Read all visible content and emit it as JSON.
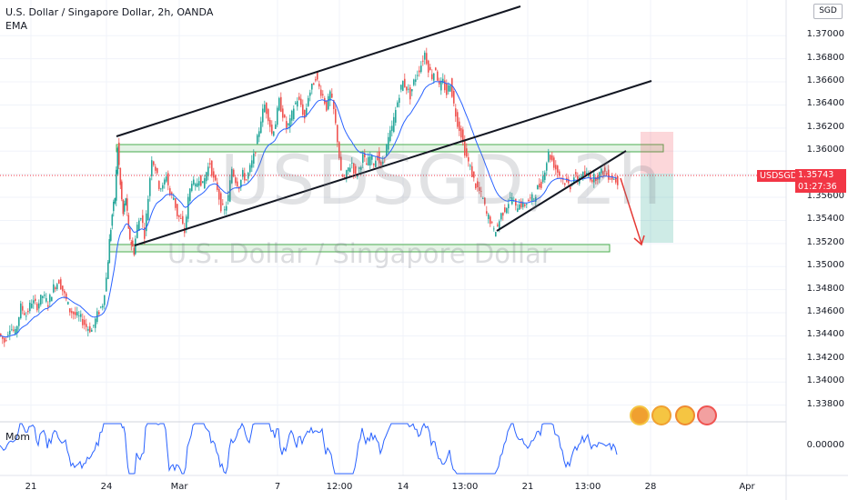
{
  "header": {
    "title": "U.S. Dollar / Singapore Dollar, 2h, OANDA",
    "indicator": "EMA"
  },
  "currency_button": "SGD",
  "watermark": {
    "symbol": "USDSGD, 2h",
    "description": "U.S. Dollar / Singapore Dollar"
  },
  "current_price": {
    "symbol": "USDSGD",
    "price": "1.35743",
    "countdown": "01:27:36"
  },
  "momentum_label": "Mom",
  "momentum_value": "0.00000",
  "colors": {
    "up": "#26a69a",
    "down": "#ef5350",
    "ema": "#2962ff",
    "zone": "#4caf50",
    "badge": "#f23645",
    "target": "#e53935"
  },
  "chart_data": {
    "type": "candlestick",
    "price_axis_ticks": [
      "1.37000",
      "1.36800",
      "1.36600",
      "1.36400",
      "1.36200",
      "1.36000",
      "1.35800",
      "1.35600",
      "1.35400",
      "1.35200",
      "1.35000",
      "1.34800",
      "1.34600",
      "1.34400",
      "1.34200",
      "1.34000",
      "1.33800"
    ],
    "time_axis_ticks": [
      "21",
      "24",
      "Mar",
      "7",
      "12:00",
      "14",
      "13:00",
      "21",
      "13:00",
      "28",
      "Apr"
    ],
    "ylim": [
      1.3375,
      1.3712
    ],
    "series": [
      {
        "name": "USDSGD",
        "path_points": [
          [
            0,
            1.3442
          ],
          [
            6,
            1.3435
          ],
          [
            12,
            1.3448
          ],
          [
            18,
            1.3442
          ],
          [
            24,
            1.3465
          ],
          [
            30,
            1.3458
          ],
          [
            36,
            1.347
          ],
          [
            42,
            1.3466
          ],
          [
            48,
            1.3475
          ],
          [
            54,
            1.3468
          ],
          [
            60,
            1.3482
          ],
          [
            66,
            1.3488
          ],
          [
            72,
            1.3475
          ],
          [
            78,
            1.3462
          ],
          [
            84,
            1.3458
          ],
          [
            90,
            1.3455
          ],
          [
            96,
            1.3448
          ],
          [
            102,
            1.3445
          ],
          [
            108,
            1.3458
          ],
          [
            114,
            1.3468
          ],
          [
            118,
            1.349
          ],
          [
            121,
            1.3522
          ],
          [
            124,
            1.3545
          ],
          [
            127,
            1.356
          ],
          [
            130,
            1.3604
          ],
          [
            133,
            1.357
          ],
          [
            136,
            1.3545
          ],
          [
            139,
            1.356
          ],
          [
            142,
            1.353
          ],
          [
            145,
            1.352
          ],
          [
            148,
            1.3513
          ],
          [
            152,
            1.3535
          ],
          [
            156,
            1.3545
          ],
          [
            160,
            1.3528
          ],
          [
            164,
            1.356
          ],
          [
            168,
            1.3595
          ],
          [
            172,
            1.3585
          ],
          [
            176,
            1.357
          ],
          [
            180,
            1.3568
          ],
          [
            184,
            1.358
          ],
          [
            188,
            1.3562
          ],
          [
            192,
            1.356
          ],
          [
            196,
            1.3545
          ],
          [
            200,
            1.354
          ],
          [
            204,
            1.353
          ],
          [
            208,
            1.3558
          ],
          [
            212,
            1.3575
          ],
          [
            216,
            1.3568
          ],
          [
            220,
            1.3578
          ],
          [
            224,
            1.357
          ],
          [
            228,
            1.3582
          ],
          [
            232,
            1.359
          ],
          [
            236,
            1.3575
          ],
          [
            240,
            1.3568
          ],
          [
            244,
            1.3552
          ],
          [
            248,
            1.3548
          ],
          [
            252,
            1.356
          ],
          [
            256,
            1.3585
          ],
          [
            260,
            1.3575
          ],
          [
            264,
            1.357
          ],
          [
            268,
            1.358
          ],
          [
            272,
            1.3575
          ],
          [
            276,
            1.3585
          ],
          [
            280,
            1.3595
          ],
          [
            284,
            1.361
          ],
          [
            288,
            1.3628
          ],
          [
            292,
            1.364
          ],
          [
            296,
            1.363
          ],
          [
            300,
            1.3615
          ],
          [
            304,
            1.3625
          ],
          [
            308,
            1.3643
          ],
          [
            312,
            1.3632
          ],
          [
            316,
            1.362
          ],
          [
            320,
            1.3625
          ],
          [
            324,
            1.3638
          ],
          [
            328,
            1.3645
          ],
          [
            332,
            1.364
          ],
          [
            336,
            1.3628
          ],
          [
            340,
            1.3648
          ],
          [
            344,
            1.3655
          ],
          [
            348,
            1.3665
          ],
          [
            352,
            1.3655
          ],
          [
            356,
            1.3648
          ],
          [
            360,
            1.3638
          ],
          [
            364,
            1.365
          ],
          [
            368,
            1.3635
          ],
          [
            372,
            1.361
          ],
          [
            376,
            1.358
          ],
          [
            380,
            1.3575
          ],
          [
            384,
            1.3585
          ],
          [
            388,
            1.359
          ],
          [
            392,
            1.3578
          ],
          [
            396,
            1.3585
          ],
          [
            400,
            1.3595
          ],
          [
            404,
            1.3588
          ],
          [
            408,
            1.3595
          ],
          [
            412,
            1.359
          ],
          [
            416,
            1.3596
          ],
          [
            420,
            1.3585
          ],
          [
            424,
            1.3598
          ],
          [
            428,
            1.361
          ],
          [
            432,
            1.362
          ],
          [
            436,
            1.3635
          ],
          [
            440,
            1.365
          ],
          [
            444,
            1.366
          ],
          [
            448,
            1.3655
          ],
          [
            452,
            1.3648
          ],
          [
            456,
            1.366
          ],
          [
            460,
            1.3668
          ],
          [
            464,
            1.3675
          ],
          [
            468,
            1.3685
          ],
          [
            472,
            1.3672
          ],
          [
            476,
            1.3665
          ],
          [
            480,
            1.3672
          ],
          [
            484,
            1.3655
          ],
          [
            488,
            1.366
          ],
          [
            492,
            1.365
          ],
          [
            496,
            1.366
          ],
          [
            500,
            1.364
          ],
          [
            504,
            1.3625
          ],
          [
            508,
            1.3615
          ],
          [
            512,
            1.36
          ],
          [
            516,
            1.359
          ],
          [
            520,
            1.358
          ],
          [
            524,
            1.357
          ],
          [
            528,
            1.3565
          ],
          [
            532,
            1.3558
          ],
          [
            536,
            1.3545
          ],
          [
            540,
            1.354
          ],
          [
            544,
            1.353
          ],
          [
            548,
            1.3535
          ],
          [
            552,
            1.3545
          ],
          [
            556,
            1.355
          ],
          [
            560,
            1.3556
          ],
          [
            564,
            1.356
          ],
          [
            568,
            1.355
          ],
          [
            572,
            1.3556
          ],
          [
            576,
            1.3552
          ],
          [
            580,
            1.3556
          ],
          [
            584,
            1.3558
          ],
          [
            588,
            1.356
          ],
          [
            592,
            1.3568
          ],
          [
            596,
            1.3572
          ],
          [
            600,
            1.3585
          ],
          [
            604,
            1.3598
          ],
          [
            608,
            1.3592
          ],
          [
            612,
            1.3585
          ],
          [
            616,
            1.358
          ],
          [
            620,
            1.3575
          ],
          [
            624,
            1.3572
          ],
          [
            628,
            1.357
          ],
          [
            632,
            1.3578
          ],
          [
            636,
            1.3575
          ],
          [
            640,
            1.358
          ],
          [
            644,
            1.3578
          ],
          [
            648,
            1.358
          ],
          [
            652,
            1.3576
          ],
          [
            656,
            1.3578
          ],
          [
            660,
            1.358
          ],
          [
            664,
            1.3583
          ],
          [
            668,
            1.358
          ],
          [
            672,
            1.3578
          ],
          [
            676,
            1.3576
          ],
          [
            680,
            1.3574
          ]
        ]
      }
    ]
  }
}
